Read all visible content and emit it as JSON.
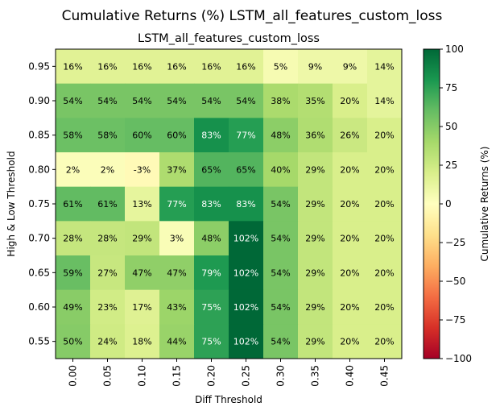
{
  "chart_data": {
    "type": "heatmap",
    "suptitle": "Cumulative Returns (%) LSTM_all_features_custom_loss",
    "title": "LSTM_all_features_custom_loss",
    "xlabel": "Diff Threshold",
    "ylabel": "High & Low Threshold",
    "x": [
      "0.00",
      "0.05",
      "0.10",
      "0.15",
      "0.20",
      "0.25",
      "0.30",
      "0.35",
      "0.40",
      "0.45"
    ],
    "y": [
      "0.95",
      "0.90",
      "0.85",
      "0.80",
      "0.75",
      "0.70",
      "0.65",
      "0.60",
      "0.55"
    ],
    "values": [
      [
        16,
        16,
        16,
        16,
        16,
        16,
        5,
        9,
        9,
        14
      ],
      [
        54,
        54,
        54,
        54,
        54,
        54,
        38,
        35,
        20,
        14
      ],
      [
        58,
        58,
        60,
        60,
        83,
        77,
        48,
        36,
        26,
        20
      ],
      [
        2,
        2,
        -3,
        37,
        65,
        65,
        40,
        29,
        20,
        20
      ],
      [
        61,
        61,
        13,
        77,
        83,
        83,
        54,
        29,
        20,
        20
      ],
      [
        28,
        28,
        29,
        3,
        48,
        102,
        54,
        29,
        20,
        20
      ],
      [
        59,
        27,
        47,
        47,
        79,
        102,
        54,
        29,
        20,
        20
      ],
      [
        49,
        23,
        17,
        43,
        75,
        102,
        54,
        29,
        20,
        20
      ],
      [
        50,
        24,
        18,
        44,
        75,
        102,
        54,
        29,
        20,
        20
      ]
    ],
    "value_suffix": "%",
    "colormap": "RdYlGn",
    "clim": [
      -100,
      100
    ],
    "colorbar": {
      "label": "Cumulative Returns (%)",
      "ticks": [
        100,
        75,
        50,
        25,
        0,
        -25,
        -50,
        -75,
        -100
      ],
      "tick_labels": [
        "100",
        "75",
        "50",
        "25",
        "0",
        "−25",
        "−50",
        "−75",
        "−100"
      ]
    }
  }
}
